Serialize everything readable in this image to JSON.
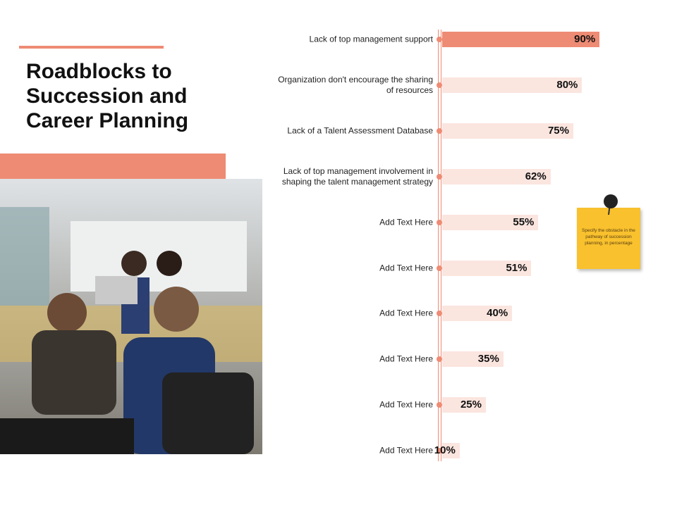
{
  "title": "Roadblocks to Succession and Career Planning",
  "note": "Specify the obstacle in the pathway of succession planning, in percentage",
  "chart_data": {
    "type": "bar",
    "orientation": "horizontal",
    "categories": [
      "Lack of top management support",
      "Organization don't encourage the sharing of resources",
      "Lack of a Talent Assessment Database",
      "Lack of top management involvement in shaping the talent management strategy",
      "Add Text Here",
      "Add Text Here",
      "Add Text Here",
      "Add Text Here",
      "Add Text Here",
      "Add Text Here"
    ],
    "values": [
      90,
      80,
      75,
      62,
      55,
      51,
      40,
      35,
      25,
      10
    ],
    "value_labels": [
      "90%",
      "80%",
      "75%",
      "62%",
      "55%",
      "51%",
      "40%",
      "35%",
      "25%",
      "10%"
    ],
    "colors": [
      "#ee8b74",
      "#fbe5df",
      "#fbe5df",
      "#fbe5df",
      "#fbe5df",
      "#fbe5df",
      "#fbe5df",
      "#fbe5df",
      "#fbe5df",
      "#fbe5df"
    ],
    "xlim": [
      0,
      100
    ]
  }
}
